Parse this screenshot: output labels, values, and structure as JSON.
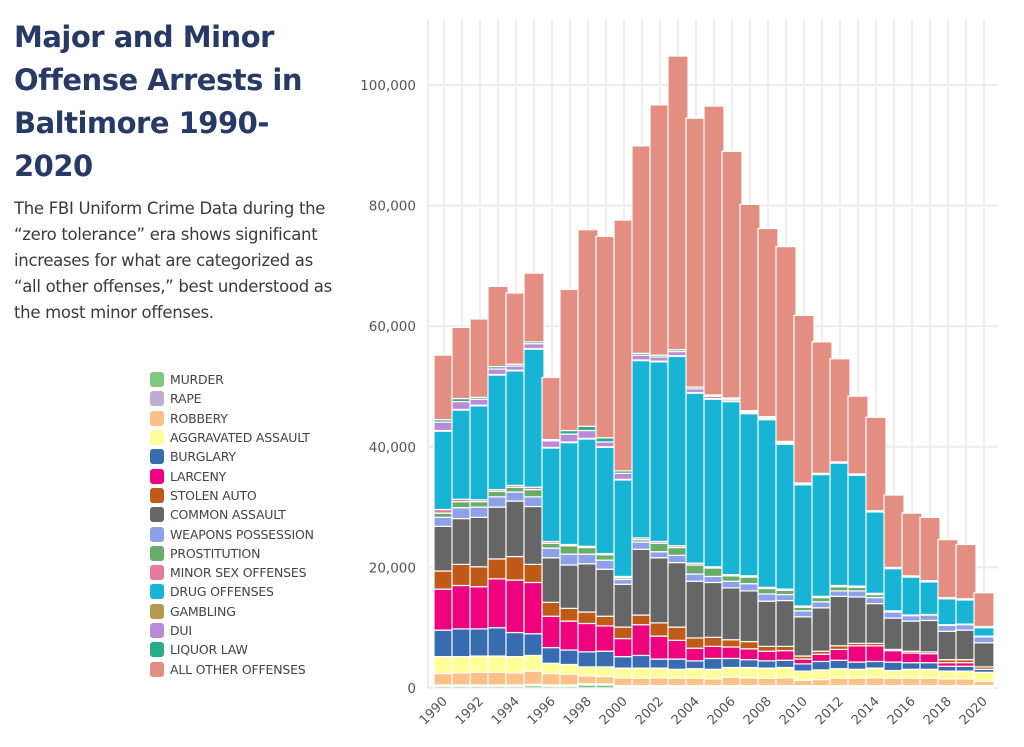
{
  "header": {
    "title": "Major and Minor Offense Arrests in Baltimore 1990-2020",
    "subtitle": "The FBI Uniform Crime Data during the “zero tolerance” era shows significant increases for what are categorized as “all other offenses,” best understood as the most minor offenses."
  },
  "chart_data": {
    "type": "bar",
    "stacked": true,
    "title": "Major and Minor Offense Arrests in Baltimore 1990-2020",
    "xlabel": "",
    "ylabel": "",
    "ylim": [
      0,
      110000
    ],
    "yticks": [
      0,
      20000,
      40000,
      60000,
      80000,
      100000
    ],
    "ytick_labels": [
      "0",
      "20,000",
      "40,000",
      "60,000",
      "80,000",
      "100,000"
    ],
    "grid": true,
    "legend_position": "left",
    "categories": [
      "1990",
      "1991",
      "1992",
      "1993",
      "1994",
      "1995",
      "1996",
      "1997",
      "1998",
      "1999",
      "2000",
      "2001",
      "2002",
      "2003",
      "2004",
      "2005",
      "2006",
      "2007",
      "2008",
      "2009",
      "2010",
      "2011",
      "2012",
      "2013",
      "2014",
      "2015",
      "2016",
      "2017",
      "2018",
      "2019",
      "2020"
    ],
    "xtick_labels": [
      "1990",
      "1992",
      "1994",
      "1996",
      "1998",
      "2000",
      "2002",
      "2004",
      "2006",
      "2008",
      "2010",
      "2012",
      "2014",
      "2016",
      "2018",
      "2020"
    ],
    "series": [
      {
        "name": "MURDER",
        "color": "#7fc97f",
        "values": [
          300,
          300,
          300,
          300,
          300,
          400,
          300,
          300,
          500,
          500,
          200,
          200,
          200,
          200,
          200,
          200,
          200,
          200,
          200,
          200,
          200,
          200,
          200,
          200,
          200,
          200,
          200,
          200,
          200,
          200,
          200
        ]
      },
      {
        "name": "RAPE",
        "color": "#beaed4",
        "values": [
          200,
          200,
          200,
          200,
          200,
          200,
          200,
          200,
          200,
          200,
          200,
          200,
          200,
          200,
          200,
          200,
          200,
          200,
          200,
          200,
          200,
          200,
          200,
          200,
          200,
          200,
          200,
          200,
          200,
          200,
          200
        ]
      },
      {
        "name": "ROBBERY",
        "color": "#fdc086",
        "values": [
          1900,
          2000,
          2100,
          2100,
          2000,
          2200,
          1900,
          1800,
          1300,
          1200,
          1300,
          1200,
          1300,
          1200,
          1200,
          1100,
          1400,
          1300,
          1200,
          1300,
          900,
          1000,
          1200,
          1200,
          1300,
          1200,
          1200,
          1200,
          1100,
          1100,
          700
        ]
      },
      {
        "name": "AGGRAVATED ASSAULT",
        "color": "#ffff99",
        "values": [
          2800,
          2700,
          2700,
          2700,
          2700,
          2600,
          1700,
          1600,
          1500,
          1600,
          1600,
          1700,
          1600,
          1500,
          1600,
          1600,
          1600,
          1700,
          1700,
          1700,
          1500,
          1600,
          1600,
          1500,
          1600,
          1300,
          1500,
          1500,
          1300,
          1300,
          1500
        ]
      },
      {
        "name": "BURGLARY",
        "color": "#386cb0",
        "values": [
          4400,
          4600,
          4500,
          4700,
          4000,
          3600,
          2600,
          2400,
          2500,
          2600,
          1900,
          2100,
          1500,
          1700,
          1300,
          1800,
          1500,
          1300,
          1200,
          1200,
          1200,
          1400,
          1400,
          1200,
          1100,
          1400,
          1100,
          1100,
          800,
          800,
          500
        ]
      },
      {
        "name": "LARCENY",
        "color": "#f0027f",
        "values": [
          6800,
          7200,
          7000,
          8100,
          8700,
          8500,
          5200,
          4800,
          4700,
          4200,
          3000,
          5100,
          3800,
          3100,
          2100,
          2000,
          1900,
          1800,
          1600,
          1600,
          800,
          1200,
          1800,
          2700,
          2600,
          1900,
          1600,
          1500,
          600,
          600,
          0
        ]
      },
      {
        "name": "STOLEN AUTO",
        "color": "#bf5b17",
        "values": [
          3000,
          3500,
          3300,
          3300,
          3900,
          3000,
          2300,
          2100,
          1900,
          1600,
          1900,
          1600,
          2200,
          2200,
          1700,
          1500,
          1200,
          1200,
          800,
          700,
          500,
          500,
          600,
          400,
          400,
          200,
          300,
          300,
          500,
          500,
          400
        ]
      },
      {
        "name": "COMMON ASSAULT",
        "color": "#666666",
        "values": [
          7400,
          7600,
          8200,
          8600,
          9200,
          9600,
          7400,
          7200,
          8000,
          7800,
          7100,
          10900,
          10800,
          10700,
          9400,
          9100,
          8600,
          8400,
          7500,
          7600,
          6500,
          7200,
          8200,
          7700,
          6600,
          5200,
          5000,
          5200,
          4700,
          4900,
          4000
        ]
      },
      {
        "name": "WEAPONS POSSESSION",
        "color": "#8da0ea",
        "values": [
          1500,
          1800,
          1700,
          1700,
          1500,
          1600,
          1600,
          1800,
          1600,
          1500,
          800,
          1200,
          1000,
          1200,
          1200,
          1000,
          1100,
          1200,
          1200,
          1000,
          1000,
          1000,
          900,
          1000,
          1000,
          1000,
          900,
          900,
          1000,
          900,
          1000
        ]
      },
      {
        "name": "PROSTITUTION",
        "color": "#69ab69",
        "values": [
          700,
          1000,
          900,
          900,
          800,
          1200,
          800,
          1400,
          1100,
          900,
          300,
          400,
          1400,
          1300,
          1500,
          1400,
          900,
          1100,
          900,
          700,
          600,
          700,
          700,
          600,
          500,
          0,
          0,
          0,
          0,
          0,
          0
        ]
      },
      {
        "name": "MINOR SEX OFFENSES",
        "color": "#e7789e",
        "values": [
          600,
          400,
          300,
          300,
          300,
          400,
          300,
          200,
          200,
          200,
          200,
          300,
          300,
          300,
          300,
          200,
          200,
          200,
          200,
          200,
          200,
          200,
          200,
          200,
          200,
          200,
          100,
          100,
          100,
          100,
          100
        ]
      },
      {
        "name": "DRUG OFFENSES",
        "color": "#18b4d6",
        "values": [
          13000,
          14800,
          15600,
          19000,
          19000,
          22900,
          15500,
          16900,
          17800,
          17600,
          16000,
          29400,
          29800,
          31400,
          28200,
          27800,
          28700,
          26900,
          27800,
          24000,
          20100,
          20200,
          20300,
          18400,
          13500,
          7000,
          6300,
          5400,
          4300,
          4000,
          1400
        ]
      },
      {
        "name": "GAMBLING",
        "color": "#b39a4e",
        "values": [
          100,
          100,
          100,
          100,
          100,
          100,
          100,
          100,
          100,
          100,
          100,
          100,
          100,
          100,
          100,
          100,
          100,
          100,
          100,
          100,
          0,
          0,
          0,
          0,
          0,
          0,
          0,
          0,
          0,
          0,
          0
        ]
      },
      {
        "name": "DUI",
        "color": "#b98ad8",
        "values": [
          1400,
          1300,
          1000,
          900,
          700,
          800,
          1100,
          1300,
          1300,
          800,
          1000,
          800,
          700,
          700,
          600,
          400,
          300,
          200,
          200,
          200,
          200,
          100,
          100,
          100,
          100,
          100,
          100,
          100,
          100,
          100,
          100
        ]
      },
      {
        "name": "LIQUOR LAW",
        "color": "#2aab8a",
        "values": [
          400,
          500,
          300,
          400,
          300,
          300,
          200,
          600,
          700,
          700,
          400,
          300,
          300,
          300,
          300,
          200,
          200,
          200,
          200,
          200,
          100,
          100,
          100,
          100,
          100,
          100,
          100,
          100,
          100,
          100,
          100
        ]
      },
      {
        "name": "ALL OTHER OFFENSES",
        "color": "#e38e80",
        "values": [
          10700,
          11800,
          13000,
          13300,
          11800,
          11400,
          10300,
          23400,
          32600,
          33400,
          41600,
          34400,
          41500,
          48700,
          44600,
          47900,
          40900,
          34200,
          31200,
          32300,
          27800,
          21800,
          17100,
          12900,
          15500,
          12000,
          10400,
          10500,
          9600,
          9000,
          5600
        ]
      }
    ]
  }
}
